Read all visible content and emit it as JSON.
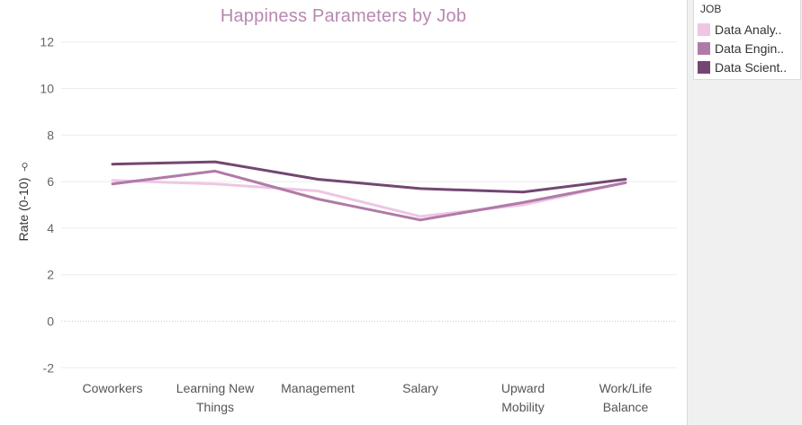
{
  "chart_data": {
    "type": "line",
    "title": "Happiness Parameters by Job",
    "xlabel": "",
    "ylabel": "Rate (0-10)",
    "ylim": [
      -2.8,
      12.8
    ],
    "yticks": [
      "12",
      "10",
      "8",
      "6",
      "4",
      "2",
      "0",
      "-2"
    ],
    "ytick_values": [
      12,
      10,
      8,
      6,
      4,
      2,
      0,
      -2
    ],
    "categories": [
      "Coworkers",
      "Learning New Things",
      "Management",
      "Salary",
      "Upward Mobility",
      "Work/Life Balance"
    ],
    "category_lines": [
      [
        "Coworkers"
      ],
      [
        "Learning New",
        "Things"
      ],
      [
        "Management"
      ],
      [
        "Salary"
      ],
      [
        "Upward",
        "Mobility"
      ],
      [
        "Work/Life",
        "Balance"
      ]
    ],
    "grid": true,
    "legend_position": "right",
    "series": [
      {
        "name": "Data Analy..",
        "color": "#eec6e4",
        "values": [
          6.05,
          5.9,
          5.6,
          4.5,
          5.0,
          5.95
        ]
      },
      {
        "name": "Data Engin..",
        "color": "#b07aa8",
        "values": [
          5.9,
          6.45,
          5.25,
          4.35,
          5.1,
          5.95
        ]
      },
      {
        "name": "Data Scient..",
        "color": "#734771",
        "values": [
          6.75,
          6.85,
          6.1,
          5.7,
          5.55,
          6.1
        ]
      }
    ]
  },
  "legend": {
    "title": "JOB"
  },
  "colors": {
    "title": "#b888b0",
    "grid": "#ececec",
    "zero_line": "#cccccc",
    "tick_text": "#666666"
  }
}
